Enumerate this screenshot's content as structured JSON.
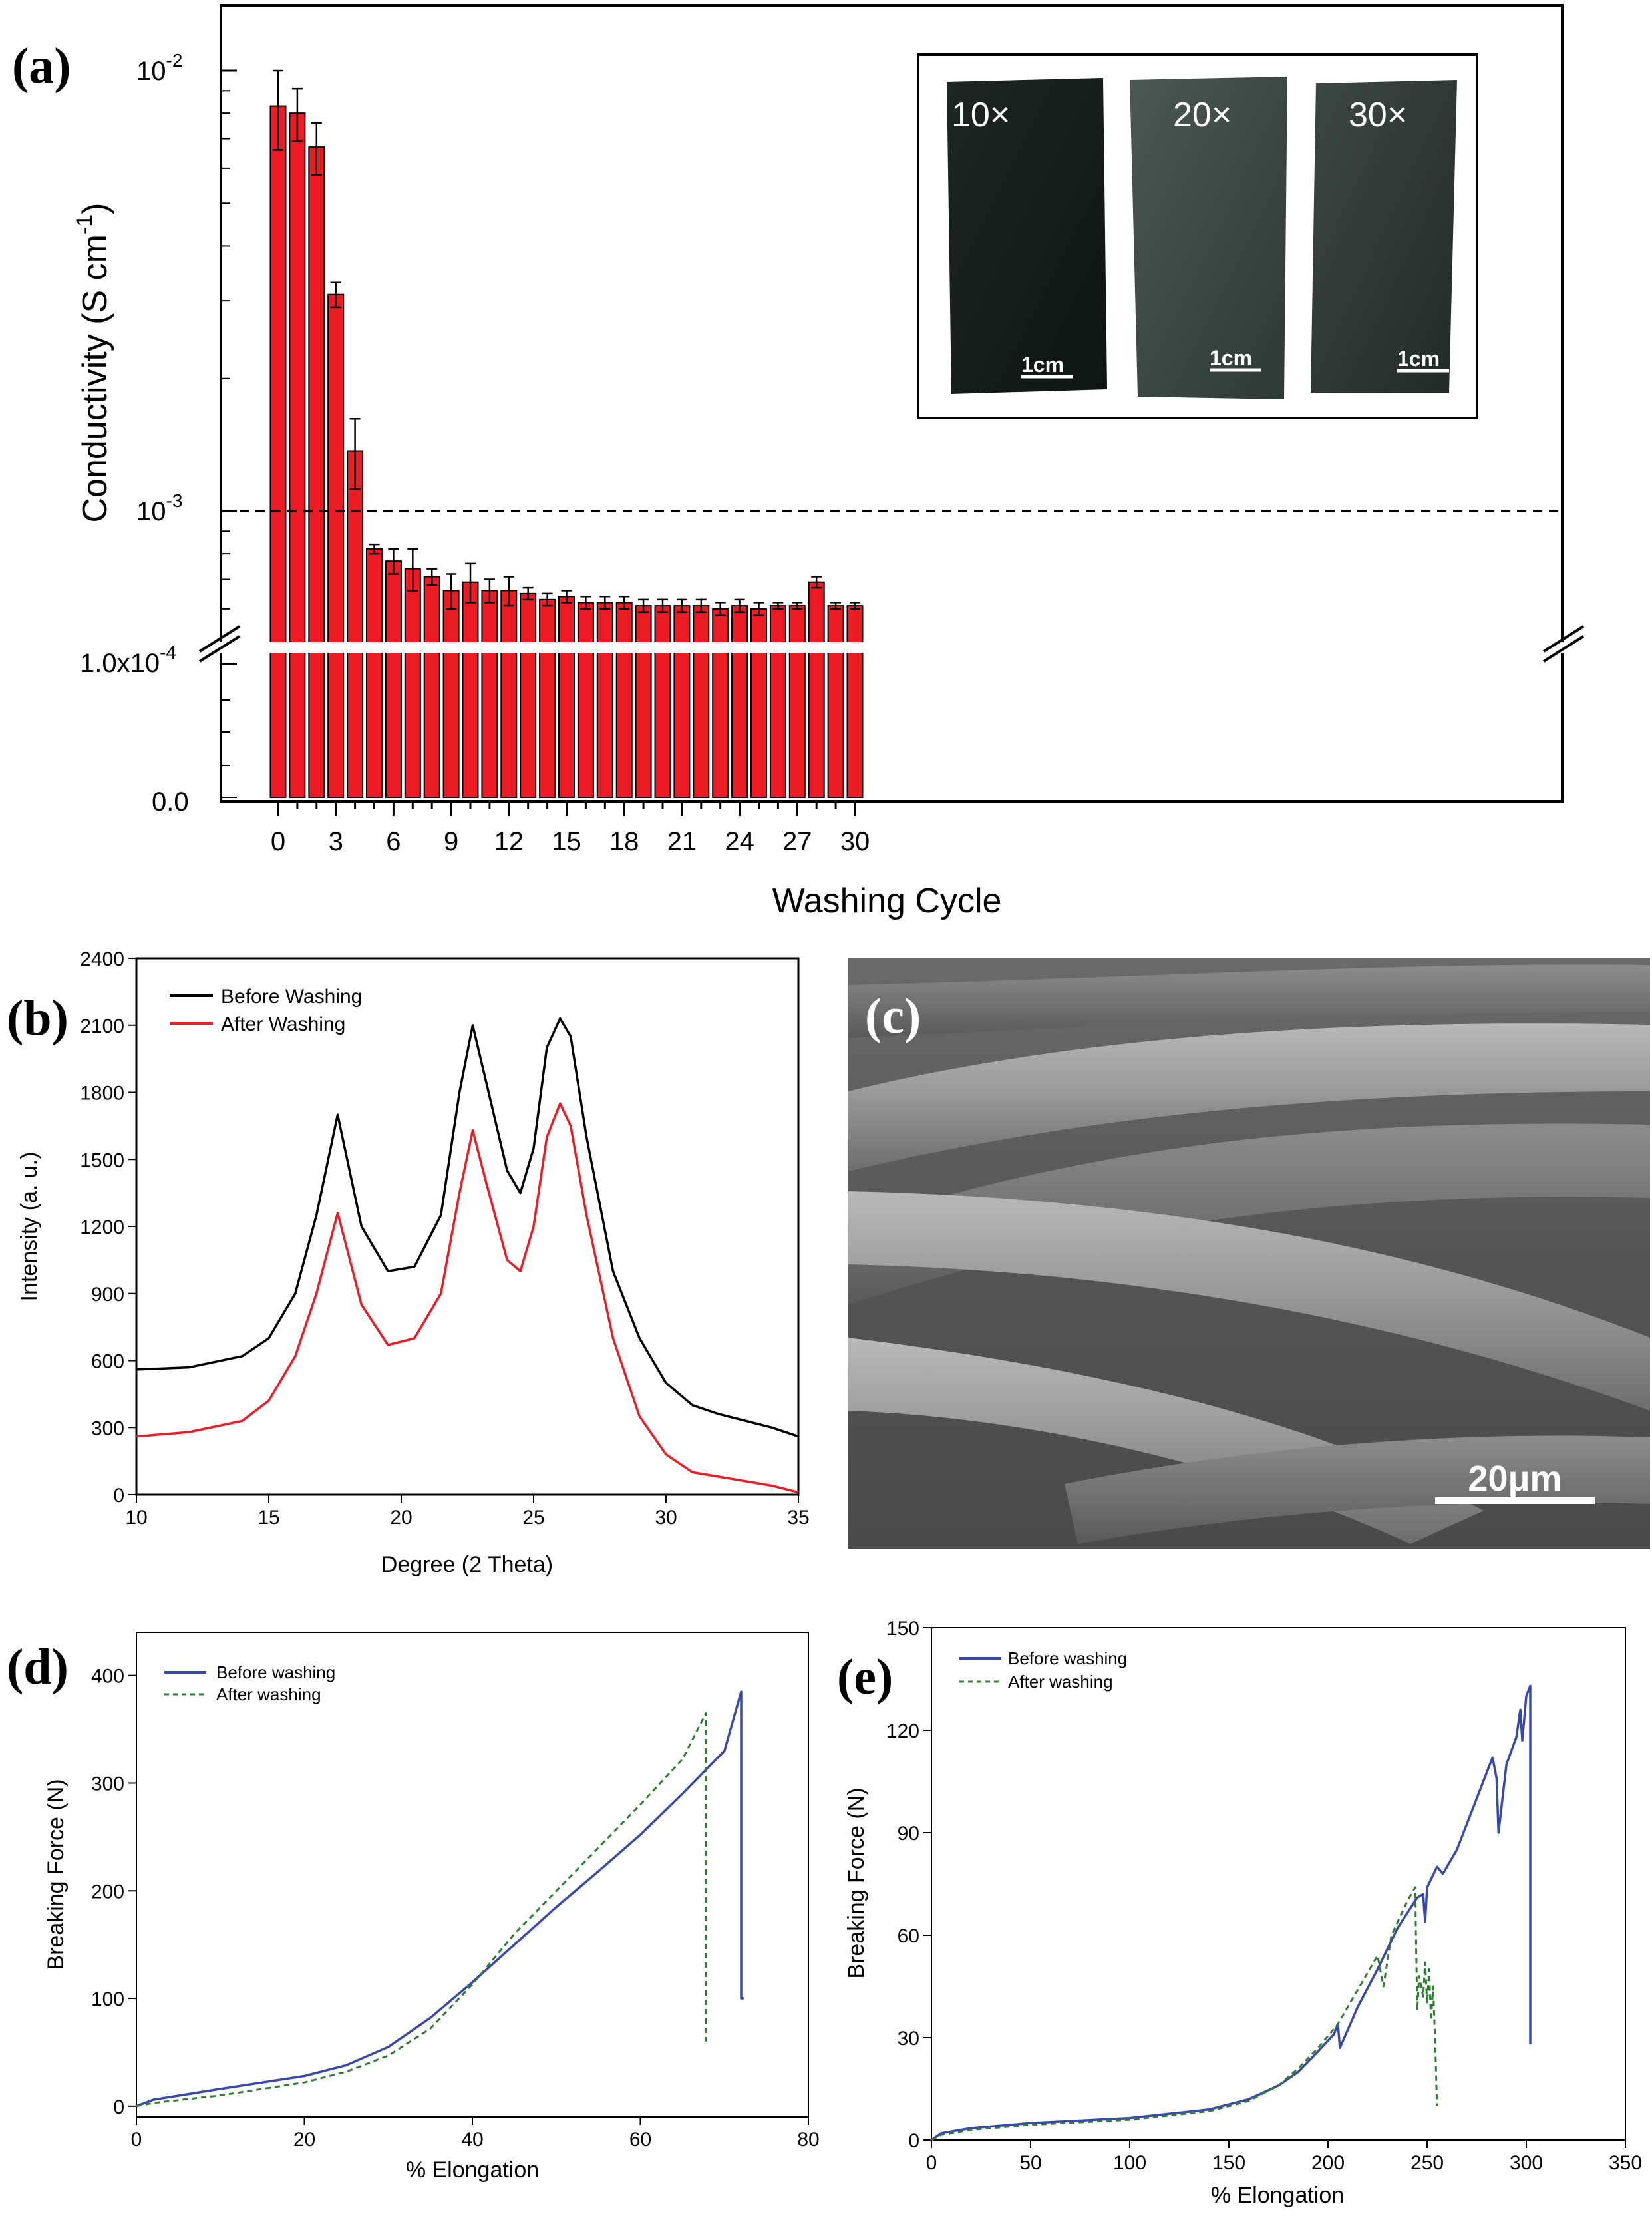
{
  "panels": {
    "a": "(a)",
    "b": "(b)",
    "c": "(c)",
    "d": "(d)",
    "e": "(e)"
  },
  "inset": {
    "labels": [
      "10×",
      "20×",
      "30×"
    ],
    "scale": "1cm"
  },
  "sem": {
    "scale": "20μm"
  },
  "colors": {
    "bar": "#ed1c24",
    "xrd_before": "#000000",
    "xrd_after": "#ed1c24",
    "mech_before": "#3949ab",
    "mech_after": "#2e7d32"
  },
  "chart_data": [
    {
      "id": "a",
      "type": "bar",
      "xlabel": "Washing Cycle",
      "ylabel": "Conductivity (S cm",
      "ylabel_sup": "-1",
      "ylabel_end": ")",
      "yscale": "log (broken axis)",
      "x": [
        0,
        1,
        2,
        3,
        4,
        5,
        6,
        7,
        8,
        9,
        10,
        11,
        12,
        13,
        14,
        15,
        16,
        17,
        18,
        19,
        20,
        21,
        22,
        23,
        24,
        25,
        26,
        27,
        28,
        29,
        30
      ],
      "values": [
        0.0083,
        0.008,
        0.0067,
        0.0031,
        0.00137,
        0.00082,
        0.00077,
        0.00074,
        0.00071,
        0.00066,
        0.00069,
        0.00066,
        0.00066,
        0.00065,
        0.00063,
        0.00064,
        0.00062,
        0.00062,
        0.00062,
        0.00061,
        0.00061,
        0.00061,
        0.00061,
        0.0006,
        0.00061,
        0.0006,
        0.00061,
        0.00061,
        0.00069,
        0.00061,
        0.00061
      ],
      "errors": [
        0.0017,
        0.0011,
        0.0009,
        0.0002,
        0.00025,
        2e-05,
        5e-05,
        8e-05,
        3e-05,
        6e-05,
        7e-05,
        4e-05,
        5e-05,
        2e-05,
        2e-05,
        2e-05,
        2e-05,
        2e-05,
        2e-05,
        2e-05,
        2e-05,
        2e-05,
        2e-05,
        2e-05,
        2e-05,
        2e-05,
        1e-05,
        1e-05,
        2e-05,
        1e-05,
        1e-05
      ],
      "threshold": 0.001,
      "x_ticks": [
        "0",
        "3",
        "6",
        "9",
        "12",
        "15",
        "18",
        "21",
        "24",
        "27",
        "30"
      ],
      "y_ticks_upper": [
        {
          "base": "10",
          "exp": "-2"
        },
        {
          "base": "10",
          "exp": "-3"
        }
      ],
      "y_ticks_lower": [
        "1.0x10",
        "0.0"
      ],
      "y_ticks_lower_exp": "-4"
    },
    {
      "id": "b",
      "type": "line",
      "xlabel": "Degree (2 Theta)",
      "ylabel": "Intensity (a. u.)",
      "xlim": [
        10,
        35
      ],
      "ylim": [
        0,
        2400
      ],
      "x_ticks": [
        "10",
        "15",
        "20",
        "25",
        "30",
        "35"
      ],
      "y_ticks": [
        "0",
        "300",
        "600",
        "900",
        "1200",
        "1500",
        "1800",
        "2100",
        "2400"
      ],
      "series": [
        {
          "name": "Before Washing",
          "x": [
            10,
            12,
            14,
            15,
            16,
            16.8,
            17.6,
            18.5,
            19.5,
            20.5,
            21.5,
            22.2,
            22.7,
            23.2,
            24,
            24.5,
            25,
            25.5,
            26,
            26.4,
            27,
            28,
            29,
            30,
            31,
            32,
            33,
            34,
            35
          ],
          "y": [
            560,
            570,
            620,
            700,
            900,
            1250,
            1700,
            1200,
            1000,
            1020,
            1250,
            1800,
            2100,
            1850,
            1450,
            1350,
            1550,
            2000,
            2130,
            2050,
            1600,
            1000,
            700,
            500,
            400,
            360,
            330,
            300,
            260
          ]
        },
        {
          "name": "After Washing",
          "x": [
            10,
            12,
            14,
            15,
            16,
            16.8,
            17.6,
            18.5,
            19.5,
            20.5,
            21.5,
            22.2,
            22.7,
            23.2,
            24,
            24.5,
            25,
            25.5,
            26,
            26.4,
            27,
            28,
            29,
            30,
            31,
            32,
            33,
            34,
            35
          ],
          "y": [
            260,
            280,
            330,
            420,
            620,
            900,
            1260,
            850,
            670,
            700,
            900,
            1350,
            1630,
            1400,
            1050,
            1000,
            1200,
            1600,
            1750,
            1650,
            1250,
            700,
            350,
            180,
            100,
            80,
            60,
            40,
            10
          ]
        }
      ]
    },
    {
      "id": "d",
      "type": "line",
      "xlabel": "% Elongation",
      "ylabel": "Breaking Force (N)",
      "xlim": [
        0,
        80
      ],
      "ylim": [
        -10,
        440
      ],
      "x_ticks": [
        "0",
        "20",
        "40",
        "60",
        "80"
      ],
      "y_ticks": [
        "0",
        "100",
        "200",
        "300",
        "400"
      ],
      "series": [
        {
          "name": "Before washing",
          "x": [
            0,
            2,
            10,
            20,
            25,
            30,
            35,
            40,
            45,
            50,
            55,
            60,
            65,
            70,
            72,
            72,
            72.3
          ],
          "y": [
            0,
            6,
            16,
            28,
            38,
            55,
            82,
            115,
            150,
            185,
            218,
            252,
            290,
            330,
            385,
            100,
            100
          ]
        },
        {
          "name": "After washing",
          "x": [
            0,
            2,
            10,
            20,
            25,
            30,
            35,
            40,
            45,
            50,
            55,
            60,
            65,
            67.8,
            67.8
          ],
          "y": [
            0,
            3,
            10,
            22,
            32,
            47,
            72,
            113,
            160,
            200,
            240,
            280,
            322,
            365,
            60
          ]
        }
      ]
    },
    {
      "id": "e",
      "type": "line",
      "xlabel": "% Elongation",
      "ylabel": "Breaking Force (N)",
      "xlim": [
        0,
        350
      ],
      "ylim": [
        0,
        150
      ],
      "x_ticks": [
        "0",
        "50",
        "100",
        "150",
        "200",
        "250",
        "300",
        "350"
      ],
      "y_ticks": [
        "0",
        "30",
        "60",
        "90",
        "120",
        "150"
      ],
      "series": [
        {
          "name": "Before washing",
          "x": [
            0,
            5,
            20,
            50,
            100,
            140,
            160,
            175,
            185,
            195,
            203,
            205,
            206,
            215,
            225,
            235,
            245,
            248,
            249,
            250,
            255,
            258,
            265,
            275,
            283,
            285,
            286,
            290,
            295,
            297,
            298,
            300,
            302,
            302,
            302
          ],
          "y": [
            0,
            2,
            3.5,
            5,
            6.5,
            9,
            12,
            16,
            20,
            26,
            31,
            34,
            27,
            39,
            50,
            62,
            71,
            72,
            64,
            74,
            80,
            78,
            85,
            100,
            112,
            106,
            90,
            110,
            118,
            126,
            117,
            130,
            133,
            55,
            28
          ]
        },
        {
          "name": "After washing",
          "x": [
            0,
            5,
            20,
            50,
            100,
            140,
            160,
            175,
            185,
            195,
            205,
            215,
            225,
            228,
            232,
            240,
            244,
            245,
            246,
            248,
            249,
            250,
            251,
            252,
            253,
            254,
            255
          ],
          "y": [
            0,
            1.5,
            3,
            4.5,
            6,
            8.5,
            11.5,
            16,
            21,
            27,
            34,
            44,
            54,
            45,
            60,
            70,
            74,
            38,
            48,
            42,
            52,
            40,
            50,
            35,
            45,
            30,
            10
          ]
        }
      ]
    }
  ]
}
